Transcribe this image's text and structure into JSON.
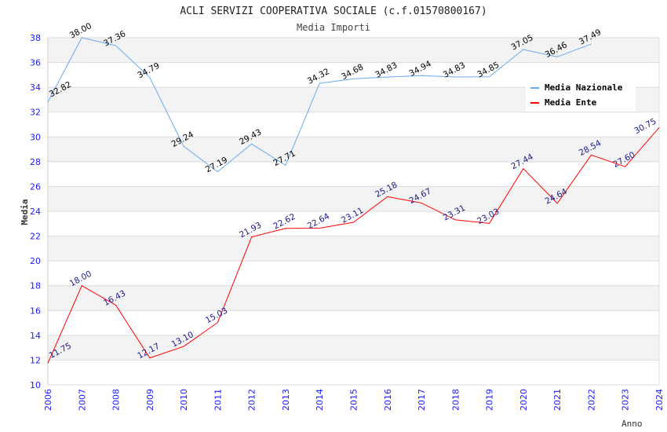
{
  "chart_data": {
    "type": "line",
    "title": "ACLI SERVIZI COOPERATIVA SOCIALE (c.f.01570800167)",
    "subtitle": "Media Importi",
    "xlabel": "Anno",
    "ylabel": "Media",
    "ylim": [
      10,
      38
    ],
    "yticks": [
      10,
      12,
      14,
      16,
      18,
      20,
      22,
      24,
      26,
      28,
      30,
      32,
      34,
      36,
      38
    ],
    "grid": true,
    "legend_position": "top-right",
    "x": [
      "2006",
      "2007",
      "2008",
      "2009",
      "2010",
      "2011",
      "2012",
      "2013",
      "2014",
      "2015",
      "2016",
      "2017",
      "2018",
      "2019",
      "2020",
      "2021",
      "2022",
      "2023",
      "2024"
    ],
    "series": [
      {
        "name": "Media Nazionale",
        "color": "#6aaaf0",
        "label_color": "#000000",
        "values": [
          32.82,
          38.0,
          37.36,
          34.79,
          29.24,
          27.19,
          29.43,
          27.71,
          34.32,
          34.68,
          34.83,
          34.94,
          34.83,
          34.85,
          37.05,
          36.46,
          37.49,
          null,
          null
        ]
      },
      {
        "name": "Media Ente",
        "color": "#ff0000",
        "label_color": "#1a1a8c",
        "values": [
          11.75,
          18.0,
          16.43,
          12.17,
          13.1,
          15.03,
          21.93,
          22.62,
          22.64,
          23.11,
          25.18,
          24.67,
          23.31,
          23.03,
          27.44,
          24.64,
          28.54,
          27.6,
          30.75
        ]
      }
    ]
  }
}
